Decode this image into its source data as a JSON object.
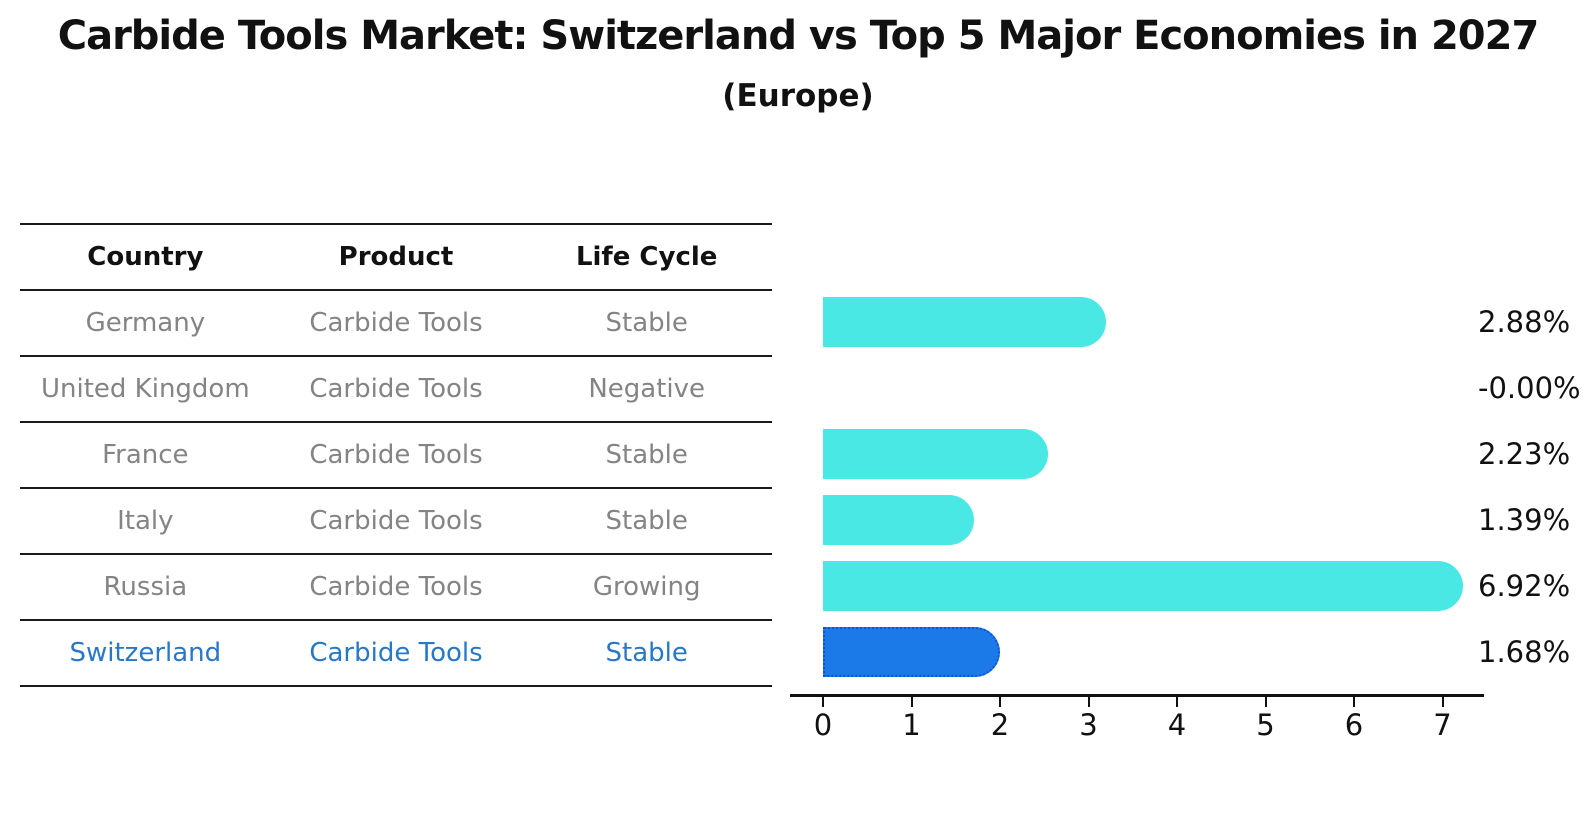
{
  "header": {
    "title": "Carbide Tools Market: Switzerland vs Top 5 Major Economies in 2027",
    "subtitle": "(Europe)"
  },
  "table": {
    "columns": [
      "Country",
      "Product",
      "Life Cycle"
    ],
    "rows": [
      {
        "country": "Germany",
        "product": "Carbide Tools",
        "life_cycle": "Stable",
        "highlight": false
      },
      {
        "country": "United Kingdom",
        "product": "Carbide Tools",
        "life_cycle": "Negative",
        "highlight": false
      },
      {
        "country": "France",
        "product": "Carbide Tools",
        "life_cycle": "Stable",
        "highlight": false
      },
      {
        "country": "Italy",
        "product": "Carbide Tools",
        "life_cycle": "Stable",
        "highlight": false
      },
      {
        "country": "Russia",
        "product": "Carbide Tools",
        "life_cycle": "Growing",
        "highlight": false
      },
      {
        "country": "Switzerland",
        "product": "Carbide Tools",
        "life_cycle": "Stable",
        "highlight": true
      }
    ]
  },
  "chart_data": {
    "type": "bar",
    "orientation": "horizontal",
    "title": "Carbide Tools Market: Switzerland vs Top 5 Major Economies in 2027",
    "subtitle": "(Europe)",
    "categories": [
      "Germany",
      "United Kingdom",
      "France",
      "Italy",
      "Russia",
      "Switzerland"
    ],
    "values": [
      2.88,
      -0.0,
      2.23,
      1.39,
      6.92,
      1.68
    ],
    "value_labels": [
      "2.88%",
      "-0.00%",
      "2.23%",
      "1.39%",
      "6.92%",
      "1.68%"
    ],
    "highlight_index": 5,
    "xlim": [
      0,
      7
    ],
    "x_ticks": [
      0,
      1,
      2,
      3,
      4,
      5,
      6,
      7
    ],
    "xlabel": "",
    "ylabel": "",
    "grid": false,
    "legend": null,
    "colors": {
      "bar_default": "#4AE8E4",
      "bar_highlight": "#1B7AE8",
      "bar_highlight_border": "#0D55CC",
      "highlight_text": "#2878C8",
      "row_text": "#848484",
      "text": "#111111"
    }
  }
}
